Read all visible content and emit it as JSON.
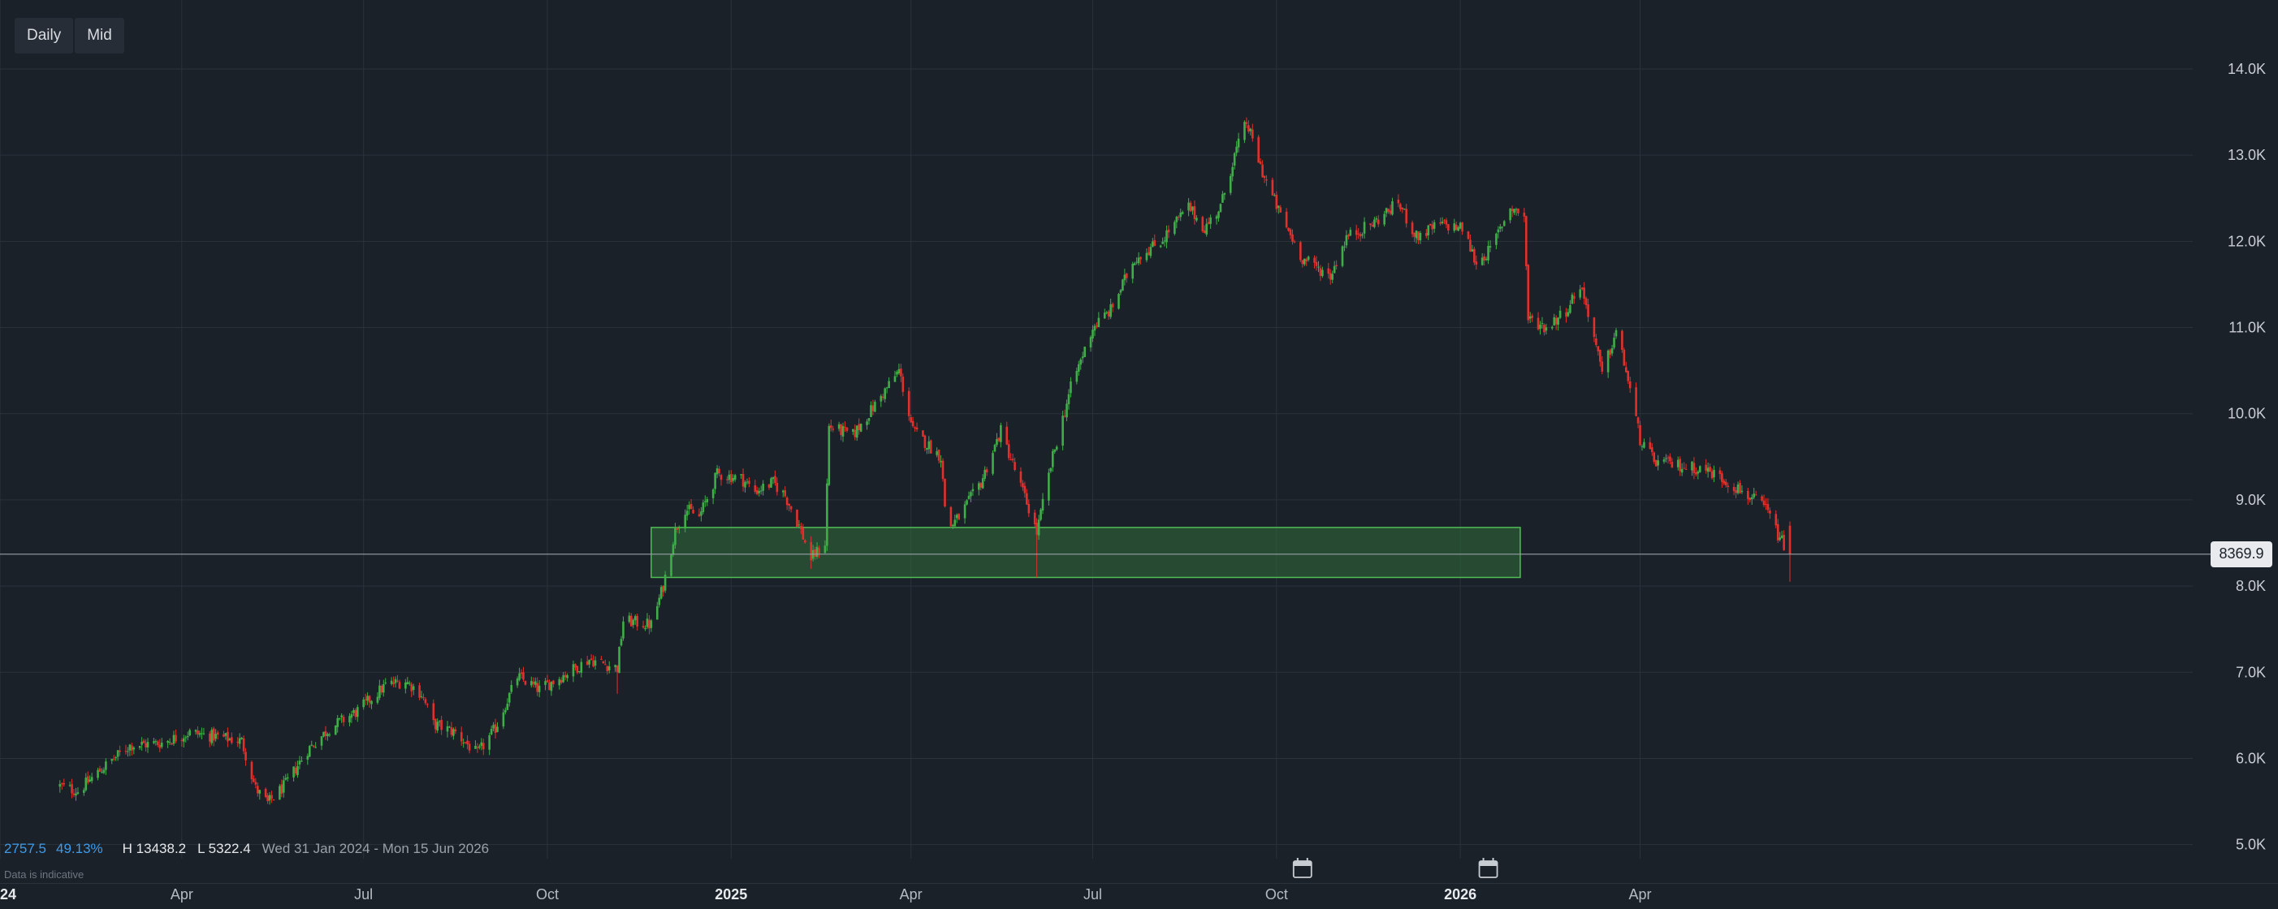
{
  "toolbar": {
    "timeframe_label": "Daily",
    "price_type_label": "Mid"
  },
  "stats": {
    "change": "2757.5",
    "change_pct": "49.13%",
    "high": "H 13438.2",
    "low": "L 5322.4",
    "range": "Wed 31 Jan 2024 - Mon 15 Jun 2026"
  },
  "note": "Data is indicative",
  "current_price_label": "8369.9",
  "colors": {
    "background": "#1b2129",
    "up": "#3fae49",
    "down": "#e0312d",
    "zone_fill": "#2f6e3a",
    "zone_border": "#4fbf55",
    "grid": "#2b323b"
  },
  "icons": [
    "calendar-icon",
    "calendar-icon"
  ],
  "chart_data": {
    "type": "candlestick",
    "y_ticks": [
      "14.0K",
      "13.0K",
      "12.0K",
      "11.0K",
      "10.0K",
      "9.0K",
      "8.0K",
      "7.0K",
      "6.0K",
      "5.0K"
    ],
    "y_tick_values": [
      14000,
      13000,
      12000,
      11000,
      10000,
      9000,
      8000,
      7000,
      6000,
      5000
    ],
    "ylim": [
      4300,
      14800
    ],
    "x_ticks": [
      {
        "label": "2024",
        "date": "2024-01-01",
        "bold": true
      },
      {
        "label": "Apr",
        "date": "2024-04-01",
        "bold": false
      },
      {
        "label": "Jul",
        "date": "2024-07-01",
        "bold": false
      },
      {
        "label": "Oct",
        "date": "2024-10-01",
        "bold": false
      },
      {
        "label": "2025",
        "date": "2025-01-01",
        "bold": true
      },
      {
        "label": "Apr",
        "date": "2025-04-01",
        "bold": false
      },
      {
        "label": "Jul",
        "date": "2025-07-01",
        "bold": false
      },
      {
        "label": "Oct",
        "date": "2025-10-01",
        "bold": false
      },
      {
        "label": "2026",
        "date": "2026-01-01",
        "bold": true
      },
      {
        "label": "Apr",
        "date": "2026-04-01",
        "bold": false
      }
    ],
    "xlim": [
      "2024-01-01",
      "2026-06-15"
    ],
    "current_price": 8369.9,
    "zone": {
      "start": "2024-11-22",
      "end": "2026-01-31",
      "low": 8100,
      "high": 8680
    },
    "close_path": [
      [
        "2024-01-31",
        5680
      ],
      [
        "2024-02-09",
        5620
      ],
      [
        "2024-02-22",
        5900
      ],
      [
        "2024-03-06",
        6150
      ],
      [
        "2024-03-22",
        6180
      ],
      [
        "2024-04-05",
        6300
      ],
      [
        "2024-04-19",
        6250
      ],
      [
        "2024-05-01",
        6200
      ],
      [
        "2024-05-08",
        5650
      ],
      [
        "2024-05-14",
        5480
      ],
      [
        "2024-05-23",
        5700
      ],
      [
        "2024-06-03",
        6100
      ],
      [
        "2024-06-14",
        6350
      ],
      [
        "2024-06-28",
        6550
      ],
      [
        "2024-07-12",
        6850
      ],
      [
        "2024-07-22",
        6900
      ],
      [
        "2024-07-30",
        6750
      ],
      [
        "2024-08-05",
        6400
      ],
      [
        "2024-08-16",
        6300
      ],
      [
        "2024-08-27",
        6050
      ],
      [
        "2024-09-05",
        6350
      ],
      [
        "2024-09-16",
        6950
      ],
      [
        "2024-09-27",
        6800
      ],
      [
        "2024-10-08",
        6950
      ],
      [
        "2024-10-22",
        7150
      ],
      [
        "2024-11-05",
        7050
      ],
      [
        "2024-11-08",
        7600
      ],
      [
        "2024-11-22",
        7550
      ],
      [
        "2024-11-28",
        8000
      ],
      [
        "2024-12-04",
        8650
      ],
      [
        "2024-12-09",
        8900
      ],
      [
        "2024-12-16",
        8800
      ],
      [
        "2024-12-25",
        9300
      ],
      [
        "2025-01-06",
        9250
      ],
      [
        "2025-01-13",
        9100
      ],
      [
        "2025-01-22",
        9200
      ],
      [
        "2025-01-28",
        9050
      ],
      [
        "2025-02-04",
        8700
      ],
      [
        "2025-02-10",
        8320
      ],
      [
        "2025-02-17",
        8500
      ],
      [
        "2025-02-19",
        9850
      ],
      [
        "2025-03-03",
        9750
      ],
      [
        "2025-03-14",
        10100
      ],
      [
        "2025-03-26",
        10500
      ],
      [
        "2025-04-02",
        9800
      ],
      [
        "2025-04-09",
        9650
      ],
      [
        "2025-04-16",
        9500
      ],
      [
        "2025-04-19",
        8650
      ],
      [
        "2025-04-25",
        8800
      ],
      [
        "2025-05-06",
        9200
      ],
      [
        "2025-05-16",
        9800
      ],
      [
        "2025-05-23",
        9350
      ],
      [
        "2025-05-30",
        8900
      ],
      [
        "2025-06-03",
        8620
      ],
      [
        "2025-06-11",
        9500
      ],
      [
        "2025-06-20",
        10300
      ],
      [
        "2025-07-01",
        11000
      ],
      [
        "2025-07-10",
        11200
      ],
      [
        "2025-07-22",
        11800
      ],
      [
        "2025-08-04",
        12000
      ],
      [
        "2025-08-18",
        12400
      ],
      [
        "2025-08-26",
        12150
      ],
      [
        "2025-09-03",
        12400
      ],
      [
        "2025-09-10",
        13000
      ],
      [
        "2025-09-16",
        13380
      ],
      [
        "2025-09-24",
        12800
      ],
      [
        "2025-10-03",
        12300
      ],
      [
        "2025-10-14",
        11800
      ],
      [
        "2025-10-28",
        11600
      ],
      [
        "2025-11-05",
        12050
      ],
      [
        "2025-11-18",
        12200
      ],
      [
        "2025-12-01",
        12450
      ],
      [
        "2025-12-10",
        12050
      ],
      [
        "2025-12-22",
        12200
      ],
      [
        "2026-01-02",
        12150
      ],
      [
        "2026-01-09",
        11750
      ],
      [
        "2026-01-16",
        11900
      ],
      [
        "2026-01-26",
        12400
      ],
      [
        "2026-02-02",
        12300
      ],
      [
        "2026-02-04",
        11100
      ],
      [
        "2026-02-13",
        11000
      ],
      [
        "2026-02-23",
        11200
      ],
      [
        "2026-03-02",
        11500
      ],
      [
        "2026-03-07",
        11100
      ],
      [
        "2026-03-13",
        10450
      ],
      [
        "2026-03-20",
        10950
      ],
      [
        "2026-03-25",
        10500
      ],
      [
        "2026-04-01",
        9700
      ],
      [
        "2026-04-08",
        9450
      ],
      [
        "2026-04-20",
        9400
      ],
      [
        "2026-05-04",
        9350
      ],
      [
        "2026-05-12",
        9250
      ],
      [
        "2026-05-22",
        9100
      ],
      [
        "2026-06-03",
        8900
      ],
      [
        "2026-06-10",
        8550
      ],
      [
        "2026-06-15",
        8370
      ]
    ],
    "spikes": [
      {
        "date": "2024-11-05",
        "low": 6750
      },
      {
        "date": "2025-02-10",
        "low": 8200
      },
      {
        "date": "2025-04-19",
        "low": 8450
      },
      {
        "date": "2025-06-03",
        "low": 8100
      },
      {
        "date": "2025-09-16",
        "high": 13438
      },
      {
        "date": "2026-06-15",
        "low": 8050
      }
    ]
  }
}
